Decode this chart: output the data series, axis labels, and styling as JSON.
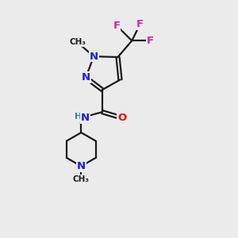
{
  "bg_color": "#ebebeb",
  "bond_color": "#1a1a1a",
  "atom_colors": {
    "N": "#1a1ae6",
    "O": "#e01010",
    "F": "#d020b0",
    "C": "#1a1a1a",
    "H": "#2090a0"
  },
  "figsize": [
    3.0,
    3.0
  ],
  "dpi": 100,
  "lw": 1.6,
  "fs": 9.5
}
